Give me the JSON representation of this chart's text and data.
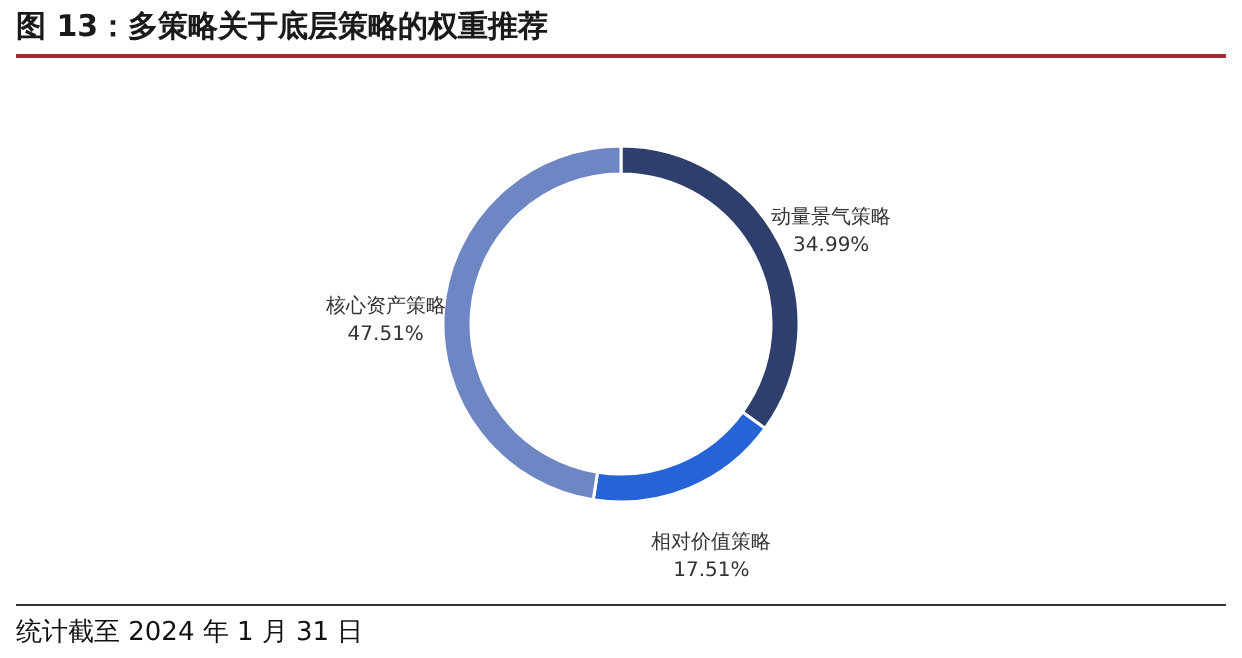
{
  "chart_data": {
    "type": "donut",
    "title": "图 13：多策略关于底层策略的权重推荐",
    "categories": [
      "动量景气策略",
      "相对价值策略",
      "核心资产策略"
    ],
    "values": [
      34.99,
      17.51,
      47.51
    ],
    "colors": [
      "#2e3f6e",
      "#2563d6",
      "#6f86c4"
    ],
    "value_labels": [
      "34.99%",
      "17.51%",
      "47.51%"
    ],
    "annotations": [
      "统计截至 2024 年 1 月 31 日"
    ]
  }
}
